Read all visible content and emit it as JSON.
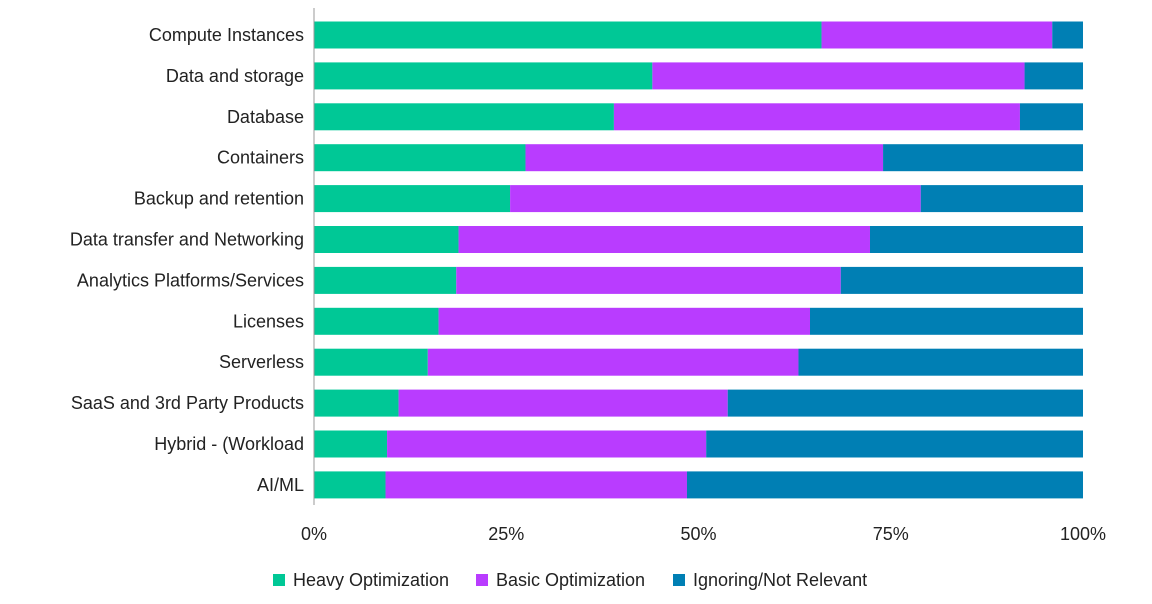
{
  "chart_data": {
    "type": "bar",
    "orientation": "horizontal",
    "stacked": "percent",
    "categories": [
      "Compute Instances",
      "Data and storage",
      "Database",
      "Containers",
      "Backup and retention",
      "Data transfer and Networking",
      "Analytics Platforms/Services",
      "Licenses",
      "Serverless",
      "SaaS and 3rd Party Products",
      "Hybrid - (Workload",
      "AI/ML"
    ],
    "series": [
      {
        "name": "Heavy Optimization",
        "color": "#00c896",
        "values": [
          66,
          44,
          39,
          27.5,
          25.5,
          18.8,
          18.5,
          16.2,
          14.8,
          11,
          9.5,
          9.3
        ]
      },
      {
        "name": "Basic Optimization",
        "color": "#b93cff",
        "values": [
          30,
          48.4,
          52.8,
          46.5,
          53.4,
          53.5,
          50,
          48.3,
          48.2,
          42.8,
          41.5,
          39.2
        ]
      },
      {
        "name": "Ignoring/Not Relevant",
        "color": "#007fb4",
        "values": [
          4,
          7.6,
          8.2,
          26,
          21.1,
          27.7,
          31.5,
          35.5,
          37,
          46.2,
          49,
          51.5
        ]
      }
    ],
    "x_ticks": [
      "0%",
      "25%",
      "50%",
      "75%",
      "100%"
    ],
    "xlim": [
      0,
      100
    ],
    "grid": false,
    "legend": "bottom-center",
    "title": "",
    "xlabel": "",
    "ylabel": ""
  }
}
